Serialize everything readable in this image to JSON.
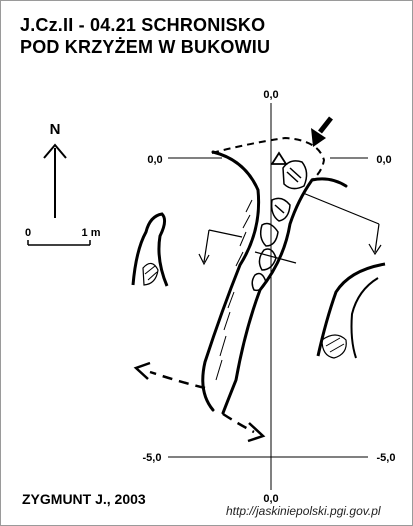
{
  "title": {
    "line1": "J.Cz.II - 04.21  SCHRONISKO",
    "line2": "POD KRZYŻEM W BUKOWIU"
  },
  "north": {
    "letter": "N"
  },
  "scale": {
    "start": "0",
    "end": "1 m"
  },
  "grid": {
    "top": "0,0",
    "bottom": "0,0",
    "left_upper": "0,0",
    "right_upper": "0,0",
    "left_lower": "-5,0",
    "right_lower": "-5,0"
  },
  "author": "ZYGMUNT J., 2003",
  "url": "http://jaskiniepolski.pgi.gov.pl",
  "icons": [
    "north-arrow-icon",
    "entrance-arrow-icon",
    "survey-station-icon"
  ],
  "colors": {
    "ink": "#000000",
    "background": "#ffffff"
  }
}
